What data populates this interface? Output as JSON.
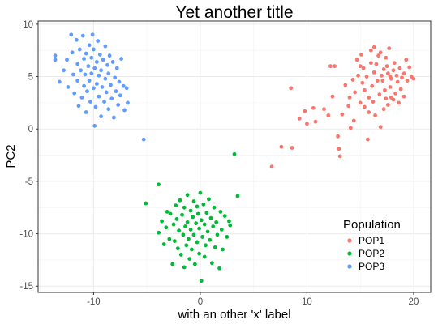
{
  "chart_data": {
    "type": "scatter",
    "title": "Yet another title",
    "xlabel": "with an other 'x' label",
    "ylabel": "PC2",
    "xlim": [
      -15.2,
      21.6
    ],
    "ylim": [
      -15.6,
      10.3
    ],
    "x_ticks": [
      -10,
      0,
      10,
      20
    ],
    "y_ticks": [
      10,
      5,
      0,
      -5,
      -10,
      -15
    ],
    "x_tick_labels": [
      "-10",
      "0",
      "10",
      "20"
    ],
    "y_tick_labels": [
      "10",
      "5",
      "0",
      "-5",
      "-10",
      "-15"
    ],
    "grid": true,
    "legend": {
      "title": "Population",
      "placement": "bottom-right"
    },
    "series": [
      {
        "name": "POP1",
        "color": "#F8766D",
        "points": [
          [
            6.7,
            -3.6
          ],
          [
            7.6,
            -1.7
          ],
          [
            8.6,
            -1.8
          ],
          [
            8.5,
            3.9
          ],
          [
            9.3,
            1.0
          ],
          [
            9.8,
            1.7
          ],
          [
            10.0,
            0.5
          ],
          [
            10.6,
            2.0
          ],
          [
            10.8,
            0.7
          ],
          [
            11.6,
            1.9
          ],
          [
            12.0,
            1.3
          ],
          [
            12.2,
            6.0
          ],
          [
            12.6,
            6.0
          ],
          [
            12.4,
            3.1
          ],
          [
            12.9,
            -0.7
          ],
          [
            13.0,
            -1.9
          ],
          [
            13.1,
            -2.6
          ],
          [
            13.3,
            1.4
          ],
          [
            13.6,
            4.2
          ],
          [
            13.9,
            2.2
          ],
          [
            14.0,
            3.0
          ],
          [
            14.1,
            0.1
          ],
          [
            14.3,
            4.7
          ],
          [
            14.4,
            0.8
          ],
          [
            14.5,
            3.5
          ],
          [
            14.7,
            6.6
          ],
          [
            14.8,
            5.1
          ],
          [
            15.0,
            2.5
          ],
          [
            15.0,
            6.0
          ],
          [
            15.1,
            7.1
          ],
          [
            15.2,
            4.4
          ],
          [
            15.3,
            5.8
          ],
          [
            15.4,
            2.1
          ],
          [
            15.4,
            3.7
          ],
          [
            15.6,
            5.0
          ],
          [
            15.7,
            -1.0
          ],
          [
            15.8,
            1.6
          ],
          [
            15.8,
            3.0
          ],
          [
            16.0,
            6.3
          ],
          [
            16.0,
            7.5
          ],
          [
            16.1,
            4.1
          ],
          [
            16.2,
            2.6
          ],
          [
            16.3,
            7.8
          ],
          [
            16.3,
            5.4
          ],
          [
            16.4,
            1.3
          ],
          [
            16.5,
            6.2
          ],
          [
            16.6,
            4.6
          ],
          [
            16.7,
            7.0
          ],
          [
            16.8,
            3.3
          ],
          [
            16.9,
            7.3
          ],
          [
            16.9,
            0.2
          ],
          [
            17.0,
            5.1
          ],
          [
            17.1,
            4.6
          ],
          [
            17.2,
            5.7
          ],
          [
            17.2,
            1.9
          ],
          [
            17.3,
            3.7
          ],
          [
            17.4,
            2.9
          ],
          [
            17.4,
            6.8
          ],
          [
            17.5,
            6.0
          ],
          [
            17.6,
            5.3
          ],
          [
            17.6,
            2.3
          ],
          [
            17.7,
            7.7
          ],
          [
            17.8,
            4.0
          ],
          [
            17.8,
            5.0
          ],
          [
            17.9,
            3.0
          ],
          [
            17.9,
            4.8
          ],
          [
            18.1,
            5.6
          ],
          [
            18.1,
            2.8
          ],
          [
            18.2,
            6.3
          ],
          [
            18.3,
            3.4
          ],
          [
            18.4,
            5.1
          ],
          [
            18.5,
            4.5
          ],
          [
            18.6,
            2.5
          ],
          [
            18.7,
            5.8
          ],
          [
            18.8,
            3.8
          ],
          [
            18.9,
            4.9
          ],
          [
            19.1,
            5.3
          ],
          [
            19.1,
            3.1
          ],
          [
            19.3,
            6.6
          ],
          [
            19.4,
            4.6
          ],
          [
            19.6,
            5.9
          ],
          [
            19.8,
            5.0
          ],
          [
            20.0,
            4.8
          ]
        ]
      },
      {
        "name": "POP2",
        "color": "#00BA38",
        "points": [
          [
            -5.1,
            -7.1
          ],
          [
            -3.9,
            -5.3
          ],
          [
            -3.9,
            -9.9
          ],
          [
            -3.6,
            -8.8
          ],
          [
            -3.4,
            -11.0
          ],
          [
            -3.2,
            -9.4
          ],
          [
            -3.1,
            -7.9
          ],
          [
            -2.9,
            -10.5
          ],
          [
            -2.8,
            -8.1
          ],
          [
            -2.6,
            -12.9
          ],
          [
            -2.5,
            -9.1
          ],
          [
            -2.4,
            -10.7
          ],
          [
            -2.3,
            -7.3
          ],
          [
            -2.2,
            -8.6
          ],
          [
            -2.1,
            -11.4
          ],
          [
            -2.0,
            -9.7
          ],
          [
            -1.9,
            -6.8
          ],
          [
            -1.8,
            -12.0
          ],
          [
            -1.7,
            -8.2
          ],
          [
            -1.6,
            -10.1
          ],
          [
            -1.5,
            -13.2
          ],
          [
            -1.5,
            -7.5
          ],
          [
            -1.4,
            -9.3
          ],
          [
            -1.3,
            -11.1
          ],
          [
            -1.2,
            -6.3
          ],
          [
            -1.2,
            -8.9
          ],
          [
            -1.1,
            -10.5
          ],
          [
            -1.0,
            -12.4
          ],
          [
            -0.9,
            -7.8
          ],
          [
            -0.9,
            -9.6
          ],
          [
            -0.8,
            -11.5
          ],
          [
            -0.7,
            -8.4
          ],
          [
            -0.6,
            -10.1
          ],
          [
            -0.6,
            -6.9
          ],
          [
            -0.5,
            -12.9
          ],
          [
            -0.4,
            -9.0
          ],
          [
            -0.3,
            -7.4
          ],
          [
            -0.3,
            -10.8
          ],
          [
            -0.2,
            -8.1
          ],
          [
            -0.1,
            -11.9
          ],
          [
            -0.1,
            -9.5
          ],
          [
            0.0,
            -6.1
          ],
          [
            0.1,
            -14.5
          ],
          [
            0.1,
            -8.7
          ],
          [
            0.2,
            -10.3
          ],
          [
            0.3,
            -7.2
          ],
          [
            0.4,
            -12.2
          ],
          [
            0.4,
            -9.1
          ],
          [
            0.5,
            -11.1
          ],
          [
            0.6,
            -8.0
          ],
          [
            0.7,
            -9.8
          ],
          [
            0.8,
            -6.7
          ],
          [
            0.9,
            -10.6
          ],
          [
            1.0,
            -8.5
          ],
          [
            1.1,
            -12.8
          ],
          [
            1.2,
            -9.3
          ],
          [
            1.3,
            -7.5
          ],
          [
            1.4,
            -11.3
          ],
          [
            1.5,
            -8.9
          ],
          [
            1.6,
            -10.1
          ],
          [
            1.8,
            -13.3
          ],
          [
            1.9,
            -7.9
          ],
          [
            2.0,
            -9.6
          ],
          [
            2.1,
            -11.5
          ],
          [
            2.3,
            -8.3
          ],
          [
            2.5,
            -10.3
          ],
          [
            2.7,
            -8.8
          ],
          [
            2.8,
            -9.2
          ],
          [
            3.2,
            -2.4
          ],
          [
            3.5,
            -6.4
          ]
        ]
      },
      {
        "name": "POP3",
        "color": "#619CFF",
        "points": [
          [
            -13.6,
            7.0
          ],
          [
            -13.6,
            6.6
          ],
          [
            -13.2,
            4.5
          ],
          [
            -12.8,
            5.6
          ],
          [
            -12.5,
            6.6
          ],
          [
            -12.4,
            4.0
          ],
          [
            -12.1,
            9.0
          ],
          [
            -12.0,
            7.3
          ],
          [
            -11.9,
            5.2
          ],
          [
            -11.8,
            3.4
          ],
          [
            -11.6,
            8.5
          ],
          [
            -11.5,
            6.2
          ],
          [
            -11.5,
            4.6
          ],
          [
            -11.4,
            2.2
          ],
          [
            -11.3,
            7.6
          ],
          [
            -11.2,
            5.6
          ],
          [
            -11.1,
            3.0
          ],
          [
            -11.0,
            8.9
          ],
          [
            -10.9,
            6.7
          ],
          [
            -10.9,
            4.1
          ],
          [
            -10.8,
            5.2
          ],
          [
            -10.7,
            1.6
          ],
          [
            -10.7,
            7.2
          ],
          [
            -10.6,
            3.6
          ],
          [
            -10.5,
            6.0
          ],
          [
            -10.4,
            8.0
          ],
          [
            -10.4,
            4.6
          ],
          [
            -10.3,
            2.6
          ],
          [
            -10.2,
            6.8
          ],
          [
            -10.2,
            5.3
          ],
          [
            -10.1,
            9.0
          ],
          [
            -10.0,
            3.9
          ],
          [
            -10.0,
            7.6
          ],
          [
            -9.9,
            0.3
          ],
          [
            -9.9,
            5.8
          ],
          [
            -9.8,
            2.1
          ],
          [
            -9.7,
            6.4
          ],
          [
            -9.7,
            4.3
          ],
          [
            -9.6,
            8.4
          ],
          [
            -9.5,
            5.1
          ],
          [
            -9.5,
            3.1
          ],
          [
            -9.4,
            7.1
          ],
          [
            -9.3,
            1.2
          ],
          [
            -9.3,
            5.6
          ],
          [
            -9.2,
            4.0
          ],
          [
            -9.1,
            6.6
          ],
          [
            -9.0,
            2.6
          ],
          [
            -8.9,
            7.9
          ],
          [
            -8.9,
            4.8
          ],
          [
            -8.8,
            3.5
          ],
          [
            -8.7,
            6.1
          ],
          [
            -8.6,
            1.9
          ],
          [
            -8.6,
            5.3
          ],
          [
            -8.5,
            7.0
          ],
          [
            -8.4,
            4.2
          ],
          [
            -8.3,
            2.9
          ],
          [
            -8.2,
            6.4
          ],
          [
            -8.1,
            1.1
          ],
          [
            -8.0,
            4.9
          ],
          [
            -7.9,
            3.6
          ],
          [
            -7.8,
            5.8
          ],
          [
            -7.7,
            2.3
          ],
          [
            -7.6,
            4.5
          ],
          [
            -7.5,
            3.2
          ],
          [
            -7.4,
            6.7
          ],
          [
            -7.2,
            4.1
          ],
          [
            -7.1,
            1.8
          ],
          [
            -6.9,
            3.9
          ],
          [
            -6.8,
            2.5
          ],
          [
            -5.3,
            -1.0
          ]
        ]
      }
    ]
  }
}
